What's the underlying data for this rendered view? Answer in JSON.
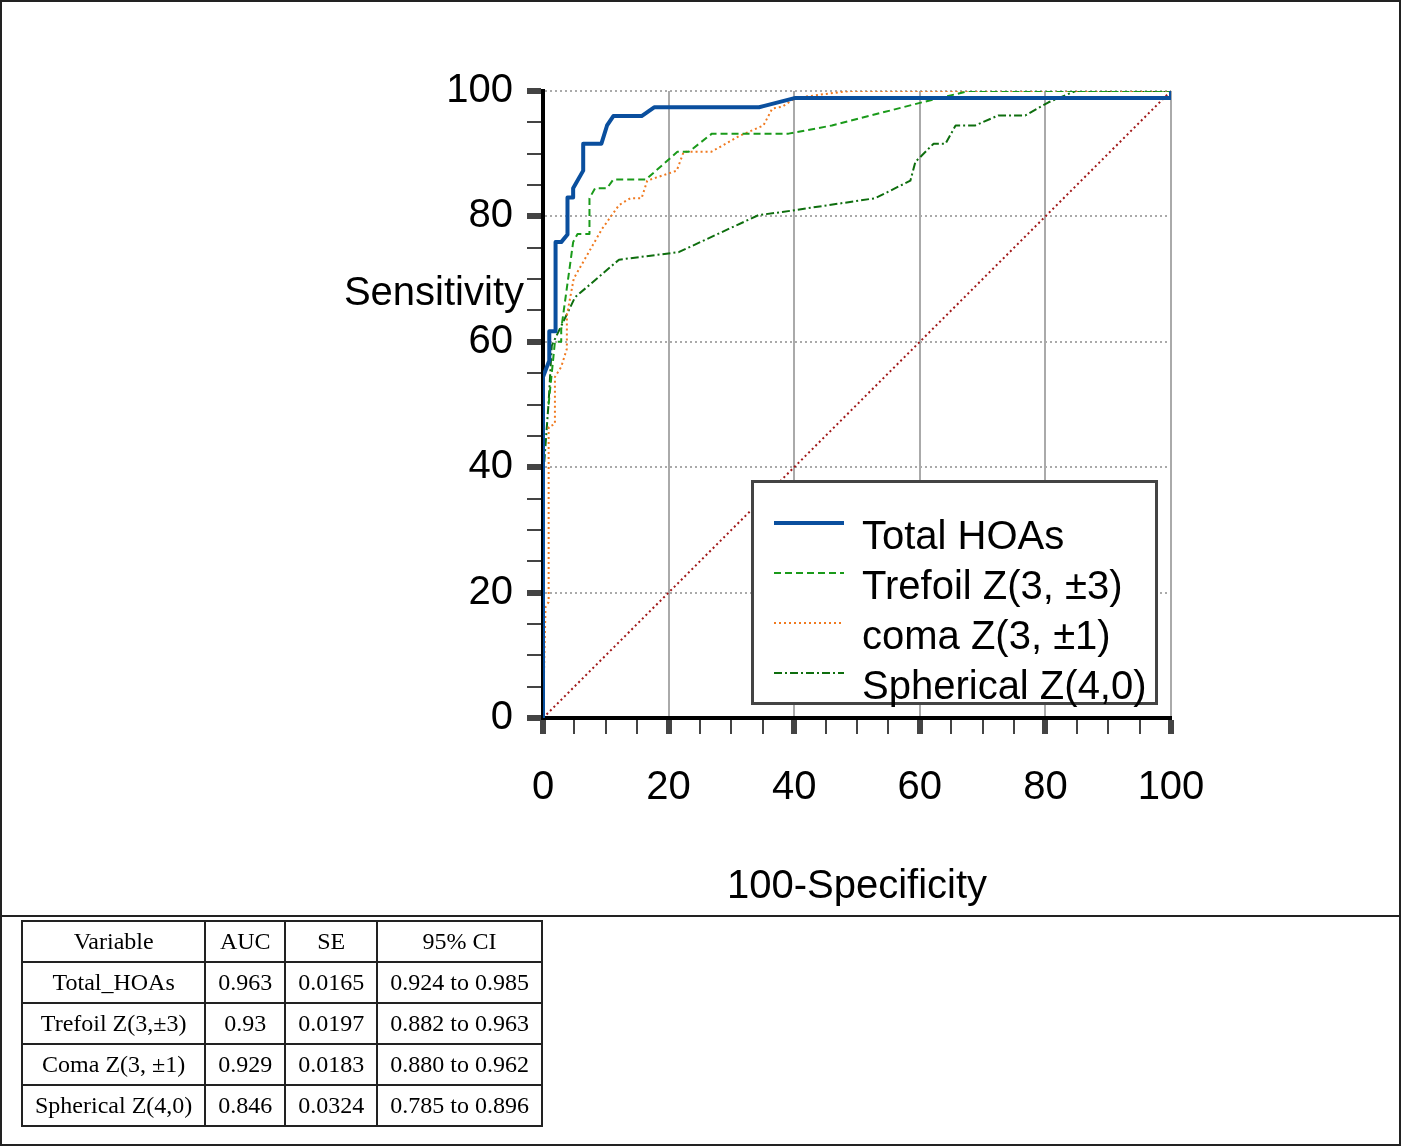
{
  "chart_data": {
    "type": "line",
    "xlabel": "100-Specificity",
    "ylabel": "Sensitivity",
    "xlim": [
      0,
      100
    ],
    "ylim": [
      0,
      100
    ],
    "xticks": [
      0,
      {
        "value": 5,
        "label": null
      },
      {
        "value": 10,
        "label": null
      },
      {
        "value": 15,
        "label": null
      },
      20,
      {
        "value": 25,
        "label": null
      },
      {
        "value": 30,
        "label": null
      },
      {
        "value": 35,
        "label": null
      },
      40,
      {
        "value": 45,
        "label": null
      },
      {
        "value": 50,
        "label": null
      },
      {
        "value": 55,
        "label": null
      },
      60,
      {
        "value": 65,
        "label": null
      },
      {
        "value": 70,
        "label": null
      },
      {
        "value": 75,
        "label": null
      },
      80,
      {
        "value": 85,
        "label": null
      },
      {
        "value": 90,
        "label": null
      },
      {
        "value": 95,
        "label": null
      },
      100
    ],
    "yticks": [
      0,
      {
        "value": 5,
        "label": null
      },
      {
        "value": 10,
        "label": null
      },
      {
        "value": 15,
        "label": null
      },
      20,
      {
        "value": 25,
        "label": null
      },
      {
        "value": 30,
        "label": null
      },
      {
        "value": 35,
        "label": null
      },
      40,
      {
        "value": 45,
        "label": null
      },
      {
        "value": 50,
        "label": null
      },
      {
        "value": 55,
        "label": null
      },
      60,
      {
        "value": 65,
        "label": null
      },
      {
        "value": 70,
        "label": null
      },
      {
        "value": 75,
        "label": null
      },
      80,
      {
        "value": 85,
        "label": null
      },
      {
        "value": 90,
        "label": null
      },
      {
        "value": 95,
        "label": null
      },
      100
    ],
    "grid": true,
    "legend": "bottom right",
    "marker": "none",
    "series": [
      {
        "name": "Total HOAs",
        "color": "#0a4f9e",
        "line_style": "solid",
        "x": [
          0,
          0,
          1,
          1,
          2,
          2,
          2.9,
          3.9,
          3.9,
          4.8,
          4.8,
          6.4,
          6.4,
          9.3,
          10.2,
          11.2,
          15.7,
          17.7,
          34.4,
          40.2,
          100,
          100
        ],
        "values": [
          0,
          54.4,
          57,
          61.7,
          61.7,
          75.9,
          75.9,
          77.1,
          83,
          83,
          84.5,
          87.3,
          91.6,
          91.6,
          94.5,
          96,
          96,
          97.4,
          97.4,
          98.9,
          98.9,
          100
        ]
      },
      {
        "name": "Trefoil Z(3, ±3)",
        "color": "#1a9a1a",
        "line_style": "dashed",
        "x": [
          0,
          0,
          0.9,
          1.9,
          2.9,
          2.9,
          4.8,
          5.5,
          7.4,
          7.4,
          8.3,
          10.2,
          11.2,
          16.4,
          21.4,
          23.2,
          26.9,
          39.1,
          46,
          60.4,
          67.8,
          100
        ],
        "values": [
          0,
          50.1,
          50.1,
          60,
          60,
          62,
          75.9,
          77.2,
          77.2,
          82.9,
          84.5,
          84.5,
          85.9,
          85.9,
          90.3,
          90.3,
          93.2,
          93.2,
          94.5,
          98.2,
          100,
          100
        ]
      },
      {
        "name": "coma Z(3, ±1)",
        "color": "#f07a20",
        "line_style": "dotted",
        "x": [
          0,
          0.4,
          0.9,
          0.9,
          1.9,
          1.9,
          2.9,
          3.8,
          3.8,
          4.9,
          9.4,
          12.1,
          13.9,
          15.7,
          16.6,
          21.3,
          22.4,
          26.8,
          31.4,
          35.1,
          36.5,
          38.1,
          40.2,
          48.7,
          100
        ],
        "values": [
          0,
          17.7,
          18.5,
          46.4,
          46.9,
          54.4,
          56,
          58.9,
          64.2,
          70.1,
          78,
          81.8,
          82.9,
          82.9,
          85.7,
          87.3,
          90.3,
          90.3,
          92.9,
          94.5,
          97.2,
          97.5,
          98.9,
          100,
          100
        ]
      },
      {
        "name": "Spherical Z(4,0)",
        "color": "#0e6e0e",
        "line_style": "dashdot",
        "x": [
          0,
          0,
          0.9,
          1.4,
          5.1,
          12.1,
          21.6,
          34.3,
          38.1,
          52.9,
          58.5,
          59.3,
          62.2,
          64.1,
          65.7,
          68.8,
          72.5,
          76.8,
          80.5,
          84.8,
          100
        ],
        "values": [
          0,
          38,
          50.4,
          59.4,
          67.1,
          73.1,
          74.3,
          80.2,
          80.7,
          82.9,
          85.7,
          88.7,
          91.6,
          91.6,
          94.5,
          94.5,
          96.1,
          96.1,
          98.2,
          100,
          100
        ]
      },
      {
        "color": "#a01818",
        "line_style": "dotted",
        "x": [
          0,
          100
        ],
        "values": [
          0,
          100
        ]
      }
    ],
    "annotations": [
      "Variable",
      "AUC",
      "SE",
      "95% CI",
      "Total_HOAs",
      "0.963",
      "0.0165",
      "0.924 to 0.985",
      "Trefoil Z(3,±3)",
      "0.93",
      "0.0197",
      "0.882 to 0.963",
      "Coma Z(3, ±1)",
      "0.929",
      "0.0183",
      "0.880 to 0.962",
      "Spherical Z(4,0)",
      "0.846",
      "0.0324",
      "0.785 to 0.896"
    ]
  }
}
